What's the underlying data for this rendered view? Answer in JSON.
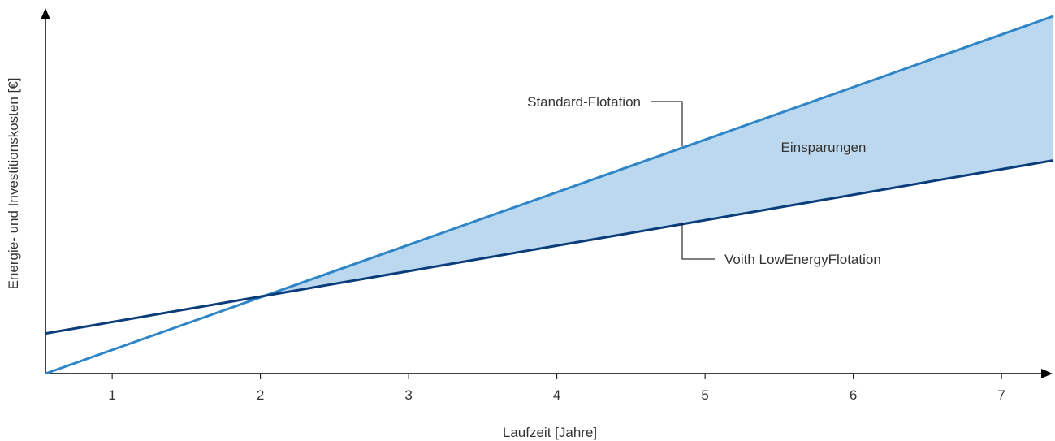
{
  "chart_data": {
    "type": "line",
    "xlabel": "Laufzeit [Jahre]",
    "ylabel": "Energie- und Investitionskosten [€]",
    "xticks": [
      1,
      2,
      3,
      4,
      5,
      6,
      7
    ],
    "xlim": [
      0.55,
      7.35
    ],
    "ylim": [
      0,
      10
    ],
    "grid": false,
    "series": [
      {
        "name": "Standard-Flotation",
        "color": "#2e86c8",
        "x": [
          0.55,
          7.35
        ],
        "y": [
          0,
          9.89
        ]
      },
      {
        "name": "Voith LowEnergyFlotation",
        "color": "#0a3d7a",
        "x": [
          0.55,
          7.35
        ],
        "y": [
          1.11,
          5.9
        ]
      }
    ],
    "fill_between": {
      "label": "Einsparungen",
      "color": "#bcd8ef",
      "from_x": 1.99
    },
    "annotations": [
      "Standard-Flotation",
      "Voith LowEnergyFlotation",
      "Einsparungen"
    ]
  }
}
